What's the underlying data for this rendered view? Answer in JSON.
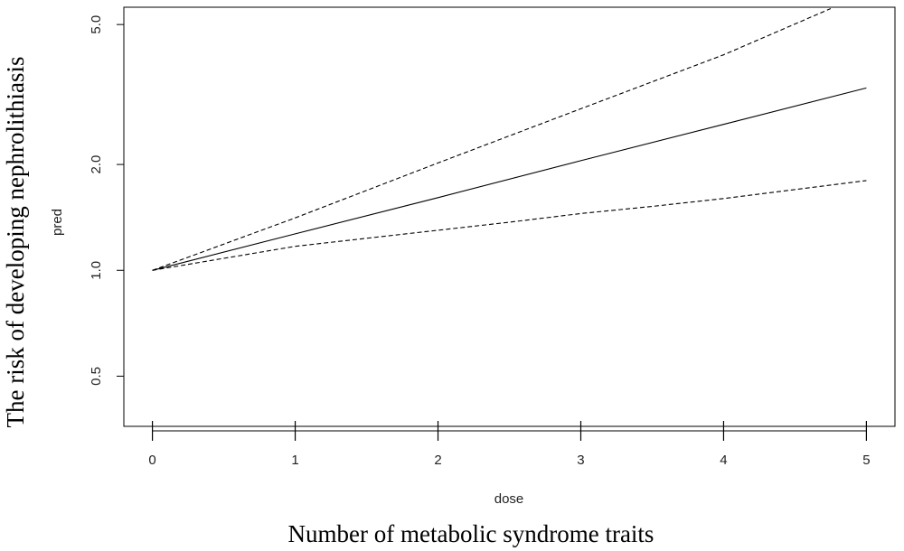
{
  "chart_data": {
    "type": "line",
    "title": "",
    "xlabel": "dose",
    "ylabel": "pred",
    "outer_xlabel": "Number of metabolic syndrome traits",
    "outer_ylabel": "The risk of developing nephrolithiasis",
    "x_scale": "linear",
    "y_scale": "log",
    "xlim": [
      -0.2,
      5.2
    ],
    "ylim": [
      0.36,
      5.6
    ],
    "x_ticks": [
      0,
      1,
      2,
      3,
      4,
      5
    ],
    "x_tick_labels": [
      "0",
      "1",
      "2",
      "3",
      "4",
      "5"
    ],
    "y_ticks": [
      0.5,
      1.0,
      2.0,
      5.0
    ],
    "y_tick_labels": [
      "0.5",
      "1.0",
      "2.0",
      "5.0"
    ],
    "grid": false,
    "legend": "none",
    "series": [
      {
        "style": "solid",
        "x": [
          0,
          1,
          2,
          3,
          4,
          5
        ],
        "values": [
          1.0,
          1.27,
          1.61,
          2.05,
          2.6,
          3.3
        ]
      },
      {
        "style": "dashed",
        "x": [
          0,
          1,
          2,
          3,
          4,
          4.75
        ],
        "values": [
          1.0,
          1.41,
          2.02,
          2.88,
          4.1,
          5.55
        ]
      },
      {
        "style": "dashed",
        "x": [
          0,
          1,
          2,
          2.5,
          3,
          3.5,
          4,
          5
        ],
        "values": [
          1.0,
          1.17,
          1.3,
          1.37,
          1.45,
          1.52,
          1.6,
          1.8
        ]
      }
    ]
  }
}
